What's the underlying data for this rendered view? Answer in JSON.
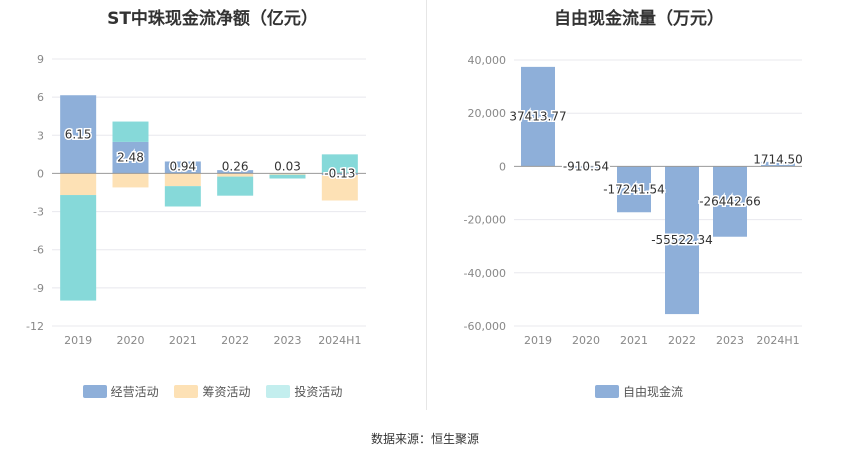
{
  "source": "数据来源：恒生聚源",
  "chart_data": [
    {
      "type": "bar",
      "stacked": true,
      "title": "ST中珠现金流净额（亿元）",
      "categories": [
        "2019",
        "2020",
        "2021",
        "2022",
        "2023",
        "2024H1"
      ],
      "ylim": [
        -12,
        9
      ],
      "yticks": [
        "9",
        "6",
        "3",
        "0",
        "-3",
        "-6",
        "-9",
        "-12"
      ],
      "grid": true,
      "legend_position": "bottom",
      "series": [
        {
          "name": "经营活动",
          "color": "#8eafd9",
          "values": [
            6.15,
            2.48,
            0.94,
            0.26,
            0.03,
            -0.13
          ]
        },
        {
          "name": "筹资活动",
          "color": "#fde1b5",
          "values": [
            -1.7,
            -1.1,
            -1.0,
            -0.25,
            -0.1,
            -2.0
          ]
        },
        {
          "name": "投资活动",
          "color": "#86d9d9",
          "values": [
            -8.3,
            1.6,
            -1.6,
            -1.5,
            -0.3,
            1.5
          ]
        }
      ],
      "data_labels": [
        "6.15",
        "2.48",
        "0.94",
        "0.26",
        "0.03",
        "-0.13"
      ]
    },
    {
      "type": "bar",
      "title": "自由现金流量（万元）",
      "categories": [
        "2019",
        "2020",
        "2021",
        "2022",
        "2023",
        "2024H1"
      ],
      "ylim": [
        -60000,
        40000
      ],
      "yticks": [
        "40,000",
        "20,000",
        "0",
        "-20,000",
        "-40,000",
        "-60,000"
      ],
      "grid": true,
      "legend_position": "bottom",
      "series": [
        {
          "name": "自由现金流",
          "color": "#8eafd9",
          "values": [
            37413.77,
            -910.54,
            -17241.54,
            -55522.34,
            -26442.66,
            1714.5
          ]
        }
      ],
      "data_labels": [
        "37413.77",
        "-910.54",
        "-17241.54",
        "-55522.34",
        "-26442.66",
        "1714.50"
      ]
    }
  ]
}
